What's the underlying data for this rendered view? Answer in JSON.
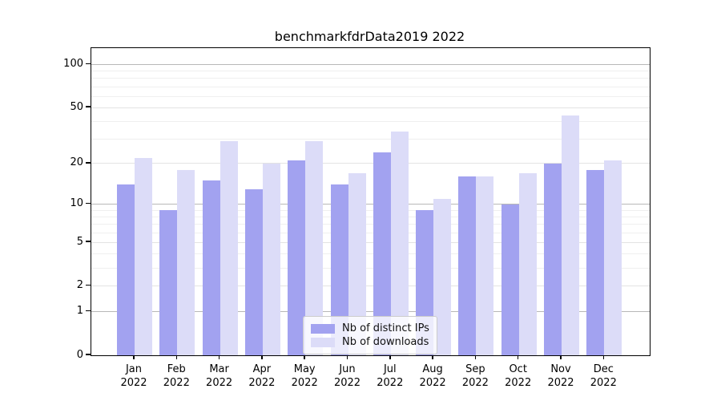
{
  "figure": {
    "title": "benchmarkfdrData2019 2022"
  },
  "chart_data": {
    "type": "bar",
    "title": "benchmarkfdrData2019 2022",
    "categories": [
      "Jan",
      "Feb",
      "Mar",
      "Apr",
      "May",
      "Jun",
      "Jul",
      "Aug",
      "Sep",
      "Oct",
      "Nov",
      "Dec"
    ],
    "category_year_label": "2022",
    "series": [
      {
        "name": "Nb of distinct IPs",
        "color": "#a2a2f0",
        "values": [
          14,
          9,
          15,
          13,
          21,
          14,
          24,
          9,
          16,
          10,
          20,
          18
        ]
      },
      {
        "name": "Nb of downloads",
        "color": "#dcdcf8",
        "values": [
          22,
          18,
          29,
          20,
          29,
          17,
          34,
          11,
          16,
          17,
          44,
          21
        ]
      }
    ],
    "yscale": "log1p",
    "ylim": [
      0,
      130
    ],
    "yticks": [
      0,
      1,
      2,
      5,
      10,
      20,
      50,
      100
    ],
    "major_gridline_ticks": [
      1,
      10,
      100
    ],
    "minor_gridline_ticks": [
      3,
      4,
      6,
      7,
      8,
      9,
      30,
      40,
      60,
      70,
      80,
      90
    ],
    "xlabel": "",
    "ylabel": "",
    "grid": true,
    "legend_position": "lower center"
  },
  "colors": {
    "major_grid": "#b8b8b8",
    "mid_grid": "#e3e3e3",
    "minor_grid": "#efefef",
    "spine": "#000000"
  }
}
